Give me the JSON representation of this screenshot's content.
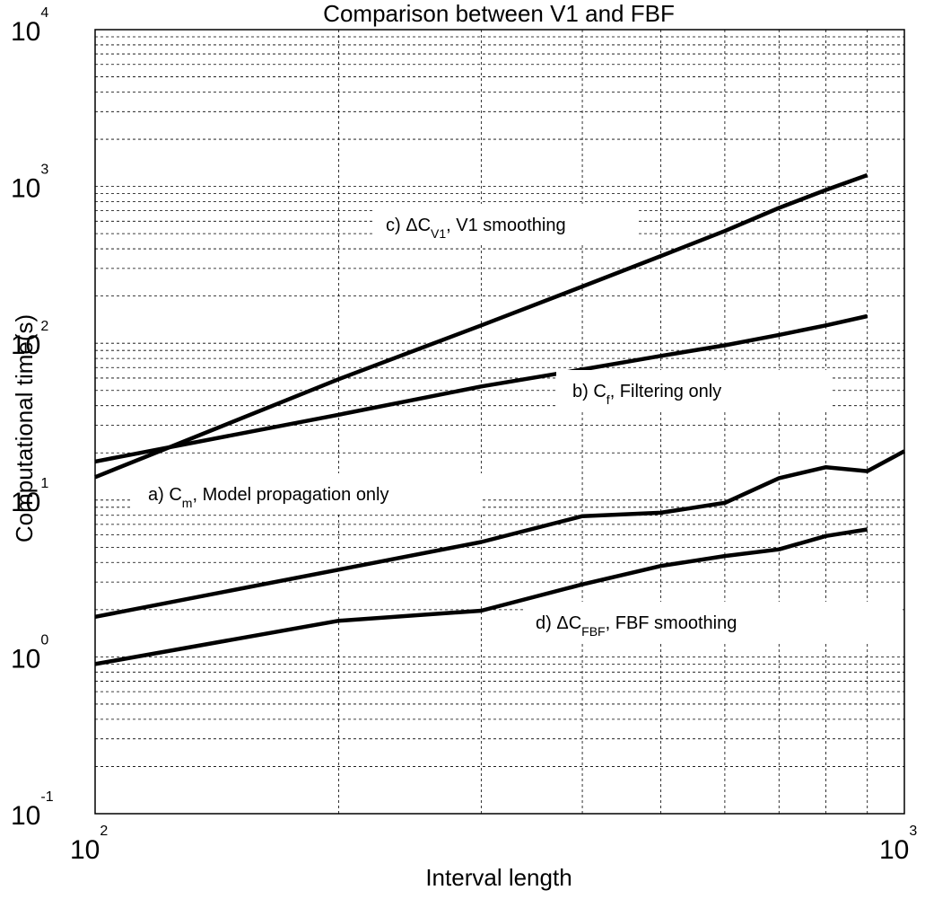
{
  "chart_data": {
    "type": "line",
    "title": "Comparison between V1 and FBF",
    "xlabel": "Interval length",
    "ylabel": "Computational time(s)",
    "x_scale": "log",
    "y_scale": "log",
    "xlim": [
      100,
      1000
    ],
    "ylim": [
      0.1,
      10000
    ],
    "grid": true,
    "x_ticks": [
      {
        "base": "10",
        "exp": "2"
      },
      {
        "base": "10",
        "exp": "3"
      }
    ],
    "y_ticks": [
      {
        "base": "10",
        "exp": "-1"
      },
      {
        "base": "10",
        "exp": "0"
      },
      {
        "base": "10",
        "exp": "1"
      },
      {
        "base": "10",
        "exp": "2"
      },
      {
        "base": "10",
        "exp": "3"
      },
      {
        "base": "10",
        "exp": "4"
      }
    ],
    "annotations": [
      {
        "series": "c",
        "prefix": "c) ΔC",
        "sub": "V1",
        "suffix": ", V1 smoothing"
      },
      {
        "series": "b",
        "prefix": "b) C",
        "sub": "f",
        "suffix": ", Filtering only"
      },
      {
        "series": "a",
        "prefix": "a) C",
        "sub": "m",
        "suffix": ", Model propagation only"
      },
      {
        "series": "d",
        "prefix": "d) ΔC",
        "sub": "FBF",
        "suffix": ", FBF smoothing"
      }
    ],
    "series": [
      {
        "id": "c",
        "x": [
          100,
          200,
          300,
          400,
          500,
          600,
          700,
          800,
          900
        ],
        "y": [
          14,
          59,
          130,
          230,
          360,
          520,
          730,
          950,
          1180
        ]
      },
      {
        "id": "b",
        "x": [
          100,
          200,
          300,
          400,
          500,
          600,
          700,
          800,
          900
        ],
        "y": [
          17.6,
          35,
          53,
          68,
          83,
          97,
          113,
          130,
          149
        ]
      },
      {
        "id": "a",
        "x": [
          100,
          200,
          300,
          400,
          500,
          600,
          700,
          800,
          900,
          1000
        ],
        "y": [
          1.8,
          3.6,
          5.4,
          7.9,
          8.3,
          9.6,
          13.8,
          16.2,
          15.3,
          20.5
        ]
      },
      {
        "id": "d",
        "x": [
          100,
          200,
          300,
          400,
          500,
          600,
          700,
          800,
          900
        ],
        "y": [
          0.9,
          1.7,
          1.97,
          2.9,
          3.8,
          4.4,
          4.85,
          5.9,
          6.5
        ]
      }
    ]
  }
}
